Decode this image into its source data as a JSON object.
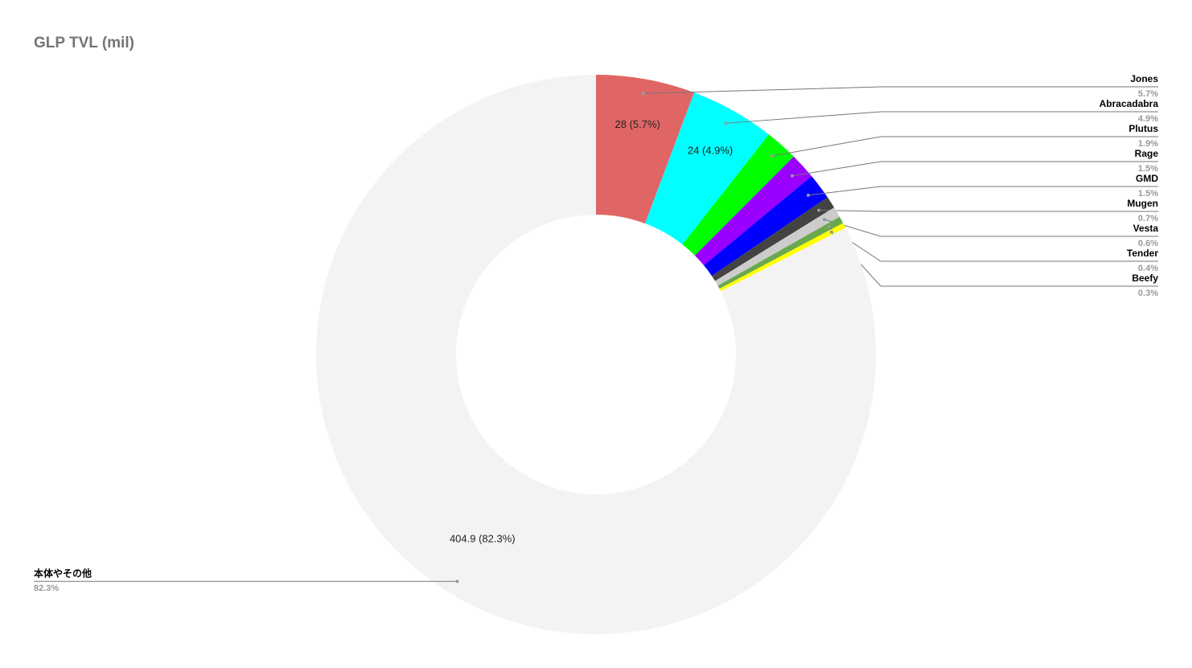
{
  "chart_data": {
    "type": "donut",
    "title": "GLP TVL (mil)",
    "categories": [
      "Jones",
      "Abracadabra",
      "Plutus",
      "Rage",
      "GMD",
      "Mugen",
      "Vesta",
      "Tender",
      "Beefy",
      "本体やその他"
    ],
    "values": [
      28,
      24,
      9.3,
      7.4,
      7.4,
      3.4,
      3,
      2,
      1.5,
      404.9
    ],
    "value_labels": [
      "28 (5.7%)",
      "24 (4.9%)",
      null,
      null,
      null,
      null,
      null,
      null,
      null,
      "404.9 (82.3%)"
    ],
    "percent_labels": [
      "5.7%",
      "4.9%",
      "1.9%",
      "1.5%",
      "1.5%",
      "0.7%",
      "0.6%",
      "0.4%",
      "0.3%",
      "82.3%"
    ],
    "colors": [
      "#e06666",
      "#00ffff",
      "#00ff00",
      "#9900ff",
      "#0000ff",
      "#434343",
      "#cccccc",
      "#6aa84f",
      "#ffff00",
      "#f3f3f3"
    ]
  }
}
